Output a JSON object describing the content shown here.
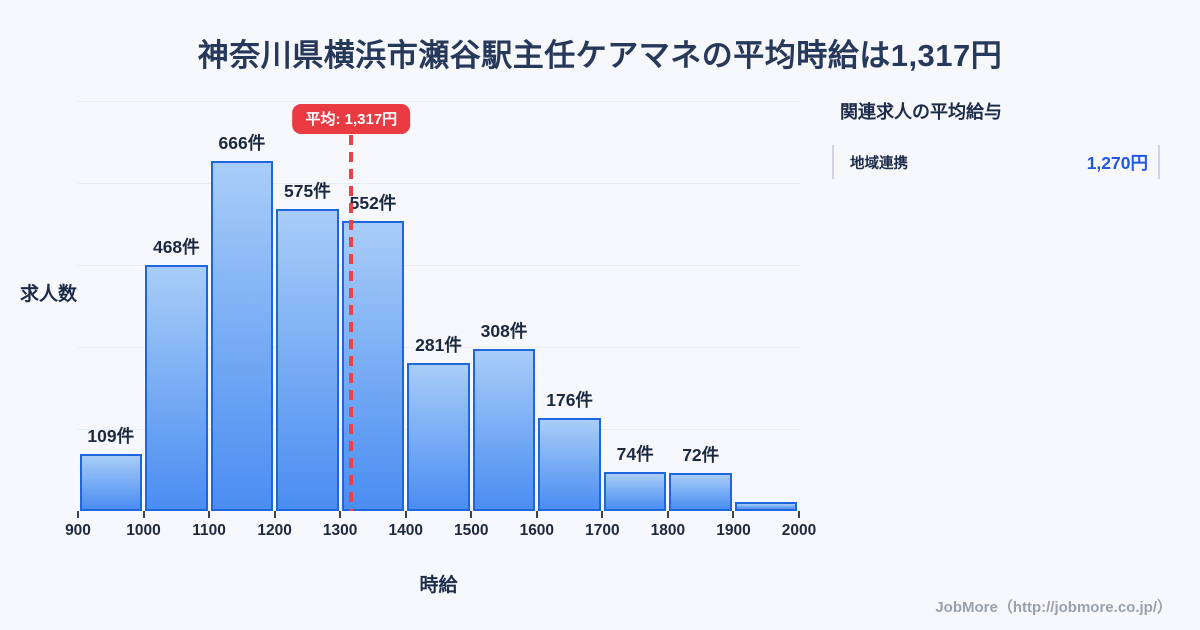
{
  "title": "神奈川県横浜市瀬谷駅主任ケアマネの平均時給は1,317円",
  "chart_data": {
    "type": "bar",
    "title": "神奈川県横浜市瀬谷駅主任ケアマネの平均時給は1,317円",
    "xlabel": "時給",
    "ylabel": "求人数",
    "xlim": [
      900,
      2000
    ],
    "ylim": [
      0,
      780
    ],
    "grid": true,
    "legend": false,
    "x_ticks": [
      "900",
      "1000",
      "1100",
      "1200",
      "1300",
      "1400",
      "1500",
      "1600",
      "1700",
      "1800",
      "1900",
      "2000"
    ],
    "bars": [
      {
        "range": "900-1000",
        "value": 109,
        "label": "109件"
      },
      {
        "range": "1000-1100",
        "value": 468,
        "label": "468件"
      },
      {
        "range": "1100-1200",
        "value": 666,
        "label": "666件"
      },
      {
        "range": "1200-1300",
        "value": 575,
        "label": "575件"
      },
      {
        "range": "1300-1400",
        "value": 552,
        "label": "552件"
      },
      {
        "range": "1400-1500",
        "value": 281,
        "label": "281件"
      },
      {
        "range": "1500-1600",
        "value": 308,
        "label": "308件"
      },
      {
        "range": "1600-1700",
        "value": 176,
        "label": "176件"
      },
      {
        "range": "1700-1800",
        "value": 74,
        "label": "74件"
      },
      {
        "range": "1800-1900",
        "value": 72,
        "label": "72件"
      },
      {
        "range": "1900-2000",
        "value": 17,
        "label": ""
      }
    ],
    "mean": {
      "value": 1317,
      "label": "平均: 1,317円"
    }
  },
  "side_panel": {
    "heading": "関連求人の平均給与",
    "rows": [
      {
        "label": "地域連携",
        "value": "1,270円"
      }
    ]
  },
  "footer": {
    "credit": "JobMore（http://jobmore.co.jp/）"
  },
  "colors": {
    "background": "#f7f8fb",
    "bar_border": "#1e66de",
    "bar_gradient_top": "#a9cdf8",
    "bar_gradient_bottom": "#4b8df2",
    "gridline": "#e8ecf3",
    "mean_red": "#ea3b43",
    "title_navy": "#27395b",
    "label_navy": "#1b2940",
    "value_blue": "#2257e6",
    "credit_gray": "#9aa1ac"
  }
}
